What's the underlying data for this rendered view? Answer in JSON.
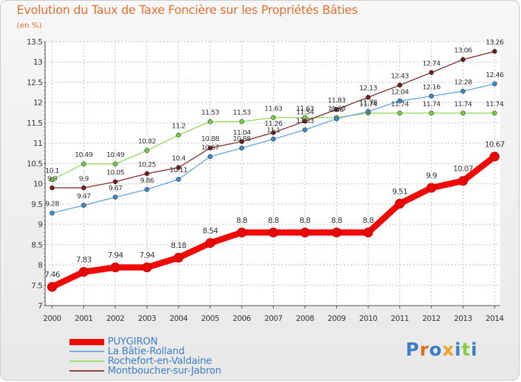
{
  "chart_data": {
    "type": "line",
    "title": "Evolution du Taux de Taxe Foncière sur les Propriétés Bâties",
    "unit_label": "(en %)",
    "x": [
      "2000",
      "2001",
      "2002",
      "2003",
      "2004",
      "2005",
      "2006",
      "2007",
      "2008",
      "2009",
      "2010",
      "2011",
      "2012",
      "2013",
      "2014"
    ],
    "yticks": [
      "7",
      "7.5",
      "8",
      "8.5",
      "9",
      "9.5",
      "10",
      "10.5",
      "11",
      "11.5",
      "12",
      "12.5",
      "13",
      "13.5"
    ],
    "ylim": [
      7,
      13.5
    ],
    "grid": true,
    "legend_position": "bottom-left",
    "series": [
      {
        "name": "PUYGIRON",
        "color": "#f00a05",
        "marker": "#e80808",
        "values": [
          7.46,
          7.83,
          7.94,
          7.94,
          8.18,
          8.54,
          8.8,
          8.8,
          8.8,
          8.8,
          8.8,
          9.51,
          9.9,
          10.07,
          10.67
        ],
        "labels": [
          "7.46",
          "7.83",
          "7.94",
          "7.94",
          "8.18",
          "8.54",
          "8.8",
          "8.8",
          "8.8",
          "8.8",
          "8.8",
          "9.51",
          "9.9",
          "10.07",
          "10.67"
        ]
      },
      {
        "name": "La Bâtie-Rolland",
        "color": "#6fa8dc",
        "marker": "#3a89c9",
        "values": [
          9.28,
          9.47,
          9.67,
          9.86,
          10.11,
          10.67,
          10.88,
          11.1,
          11.33,
          11.6,
          11.78,
          12.04,
          12.16,
          12.28,
          12.46
        ],
        "labels": [
          "9.28",
          "9.47",
          "9.67",
          "9.86",
          "10.11",
          "10.67",
          "10.88",
          "11.1",
          "11.33",
          "11.6",
          "11.78",
          "12.04",
          "12.16",
          "12.28",
          "12.46"
        ]
      },
      {
        "name": "Rochefort-en-Valdaine",
        "color": "#99dd66",
        "marker": "#77cc44",
        "values": [
          10.1,
          10.49,
          10.49,
          10.82,
          11.2,
          11.53,
          11.53,
          11.63,
          11.63,
          11.63,
          11.74,
          11.74,
          11.74,
          11.74,
          11.74
        ],
        "labels": [
          "10.1",
          "10.49",
          "10.49",
          "10.82",
          "11.2",
          "11.53",
          "11.53",
          "11.63",
          "11.63",
          "11.63",
          "11.74",
          "11.74",
          "11.74",
          "11.74",
          "11.74"
        ]
      },
      {
        "name": "Montboucher-sur-Jabron",
        "color": "#8b3a3a",
        "marker": "#6b1f1f",
        "values": [
          9.9,
          9.9,
          10.05,
          10.25,
          10.4,
          10.88,
          11.04,
          11.26,
          11.54,
          11.83,
          12.13,
          12.43,
          12.74,
          13.06,
          13.26
        ],
        "labels": [
          "9.9",
          "9.9",
          "10.05",
          "10.25",
          "10.4",
          "10.88",
          "11.04",
          "11.26",
          "11.54",
          "11.83",
          "12.13",
          "12.43",
          "12.74",
          "13.06",
          "13.26"
        ]
      }
    ]
  },
  "logo": {
    "text": "Proxiti"
  }
}
